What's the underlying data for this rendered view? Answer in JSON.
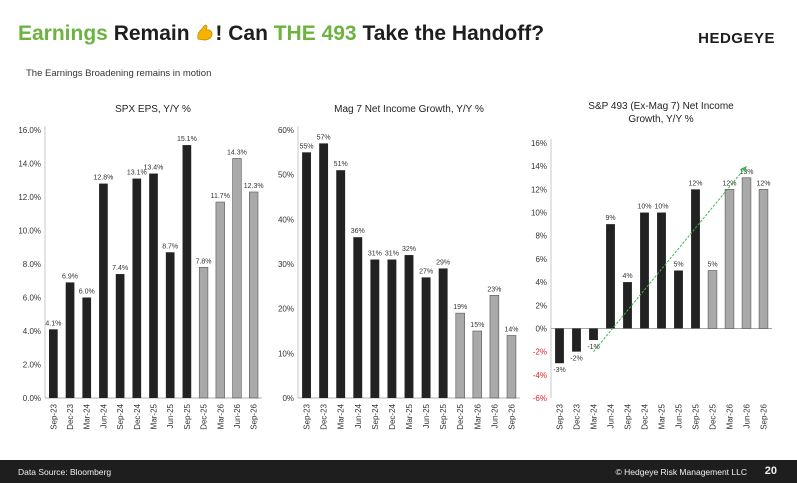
{
  "header": {
    "title_part1": "Earnings",
    "title_part2": " Remain ",
    "title_part3": "! Can ",
    "title_part4": "THE 493",
    "title_part5": " Take the Handoff?",
    "logo": "HEDGEYE",
    "subtitle": "The Earnings Broadening remains in motion",
    "emoji_icon": "flexed-biceps-icon",
    "accent_color": "#6cb33f"
  },
  "footer": {
    "source": "Data Source: Bloomberg",
    "copyright": "© Hedgeye Risk Management LLC",
    "page": "20"
  },
  "chart_data": [
    {
      "type": "bar",
      "title": "SPX EPS, Y/Y %",
      "categories": [
        "Sep-23",
        "Dec-23",
        "Mar-24",
        "Jun-24",
        "Sep-24",
        "Dec-24",
        "Mar-25",
        "Jun-25",
        "Sep-25",
        "Dec-25",
        "Mar-26",
        "Jun-26",
        "Sep-26"
      ],
      "values": [
        4.1,
        6.9,
        6.0,
        12.8,
        7.4,
        13.1,
        13.4,
        8.7,
        15.1,
        7.8,
        11.7,
        14.3,
        12.3
      ],
      "labels": [
        "4.1%",
        "6.9%",
        "6.0%",
        "12.8%",
        "7.4%",
        "13.1%",
        "13.4%",
        "8.7%",
        "15.1%",
        "7.8%",
        "11.7%",
        "14.3%",
        "12.3%"
      ],
      "ylim": [
        0,
        16
      ],
      "yticks": [
        "0.0%",
        "2.0%",
        "4.0%",
        "6.0%",
        "8.0%",
        "10.0%",
        "12.0%",
        "14.0%",
        "16.0%"
      ],
      "estimate_from_index": 9,
      "actual_color": "#222222",
      "estimate_color": "#a9a9a9"
    },
    {
      "type": "bar",
      "title": "Mag 7 Net Income Growth, Y/Y %",
      "categories": [
        "Sep-23",
        "Dec-23",
        "Mar-24",
        "Jun-24",
        "Sep-24",
        "Dec-24",
        "Mar-25",
        "Jun-25",
        "Sep-25",
        "Dec-25",
        "Mar-26",
        "Jun-26",
        "Sep-26"
      ],
      "values": [
        55,
        57,
        51,
        36,
        31,
        31,
        32,
        27,
        29,
        19,
        15,
        23,
        14
      ],
      "labels": [
        "55%",
        "57%",
        "51%",
        "36%",
        "31%",
        "31%",
        "32%",
        "27%",
        "29%",
        "19%",
        "15%",
        "23%",
        "14%"
      ],
      "ylim": [
        0,
        60
      ],
      "yticks": [
        "0%",
        "10%",
        "20%",
        "30%",
        "40%",
        "50%",
        "60%"
      ],
      "estimate_from_index": 9,
      "actual_color": "#222222",
      "estimate_color": "#a9a9a9"
    },
    {
      "type": "bar",
      "title_line1": "S&P 493 (Ex-Mag 7) Net Income",
      "title_line2": "Growth, Y/Y %",
      "categories": [
        "Sep-23",
        "Dec-23",
        "Mar-24",
        "Jun-24",
        "Sep-24",
        "Dec-24",
        "Mar-25",
        "Jun-25",
        "Sep-25",
        "Dec-25",
        "Mar-26",
        "Jun-26",
        "Sep-26"
      ],
      "values": [
        -3,
        -2,
        -1,
        9,
        4,
        10,
        10,
        5,
        12,
        5,
        12,
        13,
        12
      ],
      "labels": [
        "-3%",
        "-2%",
        "-1%",
        "9%",
        "4%",
        "10%",
        "10%",
        "5%",
        "12%",
        "5%",
        "12%",
        "13%",
        "12%"
      ],
      "ylim": [
        -6,
        16
      ],
      "yticks": [
        "-6%",
        "-4%",
        "-2%",
        "0%",
        "2%",
        "4%",
        "6%",
        "8%",
        "10%",
        "12%",
        "14%",
        "16%"
      ],
      "negative_tick_color": "#d62728",
      "estimate_from_index": 9,
      "actual_color": "#222222",
      "estimate_color": "#a9a9a9",
      "trend_arrow": {
        "from_category": "Mar-24",
        "from_value": -2,
        "to_category": "Jun-26",
        "to_value": 14,
        "color": "#3cb44b"
      }
    }
  ]
}
